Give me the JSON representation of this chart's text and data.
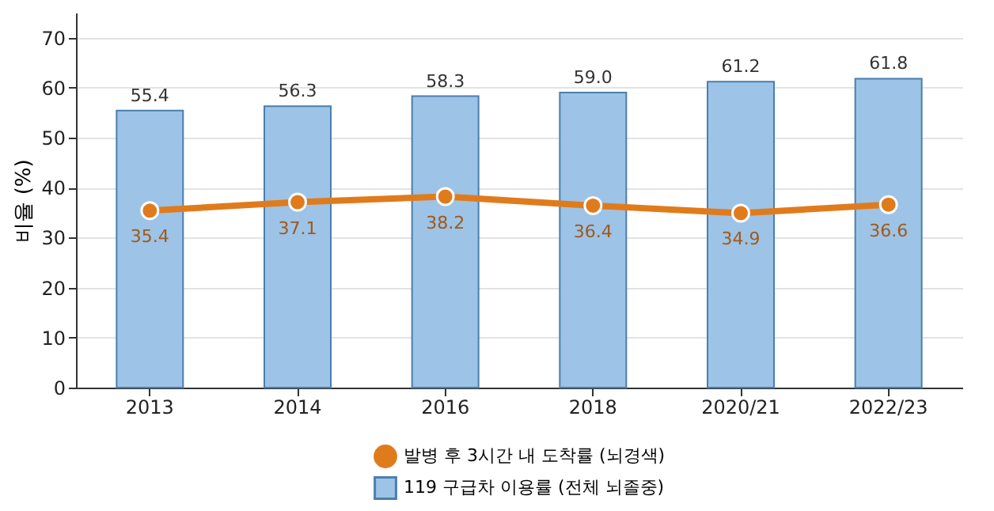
{
  "chart_data": {
    "type": "bar",
    "ylabel": "비율 (%)",
    "categories": [
      "2013",
      "2014",
      "2016",
      "2018",
      "2020/21",
      "2022/23"
    ],
    "series": [
      {
        "name": "발병 후 3시간 내 도착률 (뇌경색)",
        "type": "line",
        "color": "#e07b1c",
        "values": [
          35.4,
          37.1,
          38.2,
          36.4,
          34.9,
          36.6
        ],
        "value_labels": [
          "35.4",
          "37.1",
          "38.2",
          "36.4",
          "34.9",
          "36.6"
        ]
      },
      {
        "name": "119 구급차 이용률 (전체 뇌졸중)",
        "color": "#9dc3e6",
        "values": [
          55.4,
          56.3,
          58.3,
          59.0,
          61.2,
          61.8
        ],
        "value_labels": [
          "55.4",
          "56.3",
          "58.3",
          "59.0",
          "61.2",
          "61.8"
        ]
      }
    ],
    "ylim": [
      0,
      75
    ],
    "yticks": [
      0,
      10,
      20,
      30,
      40,
      50,
      60,
      70
    ],
    "grid": "y",
    "legend": "bottom",
    "marker": "circle",
    "line_style": "solid"
  }
}
